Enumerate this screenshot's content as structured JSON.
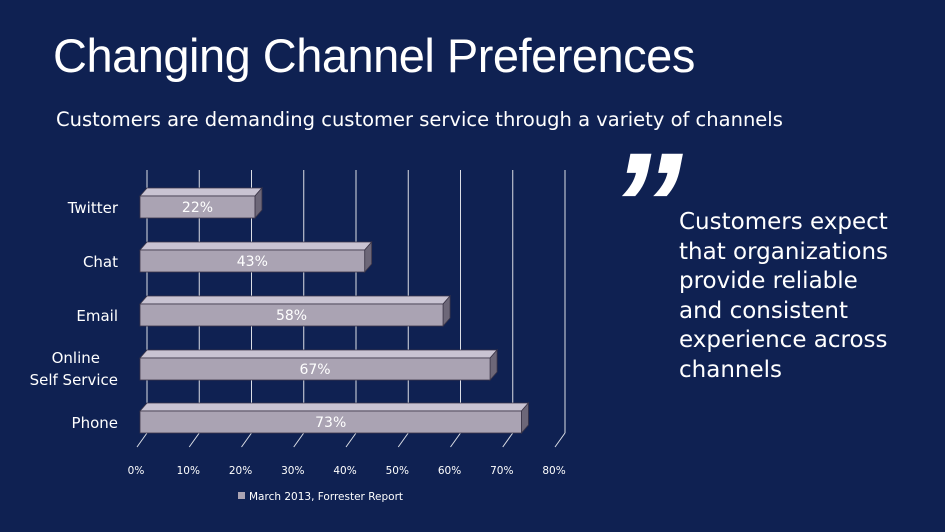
{
  "slide": {
    "title": "Changing Channel Preferences",
    "subtitle": "Customers are demanding customer service through a variety of channels",
    "quote_mark": "”",
    "quote": "Customers expect that organizations provide reliable and consistent experience across channels"
  },
  "colors": {
    "background": "#0f2152",
    "bar_front": "#aaa3b3",
    "bar_top": "#c9c3d2",
    "bar_side": "#6d6778",
    "gridline": "#ffffff"
  },
  "chart_data": {
    "type": "bar",
    "orientation": "horizontal",
    "style": "3d",
    "categories": [
      "Phone",
      "Online\nSelf Service",
      "Email",
      "Chat",
      "Twitter"
    ],
    "series": [
      {
        "name": "March 2013, Forrester Report",
        "values": [
          73,
          67,
          58,
          43,
          22
        ],
        "data_labels": [
          "73%",
          "67%",
          "58%",
          "43%",
          "22%"
        ]
      }
    ],
    "xlim": [
      0,
      80
    ],
    "xticks": [
      "0%",
      "10%",
      "20%",
      "30%",
      "40%",
      "50%",
      "60%",
      "70%",
      "80%"
    ],
    "title": "",
    "xlabel": "",
    "ylabel": "",
    "grid": true,
    "legend_position": "bottom"
  }
}
